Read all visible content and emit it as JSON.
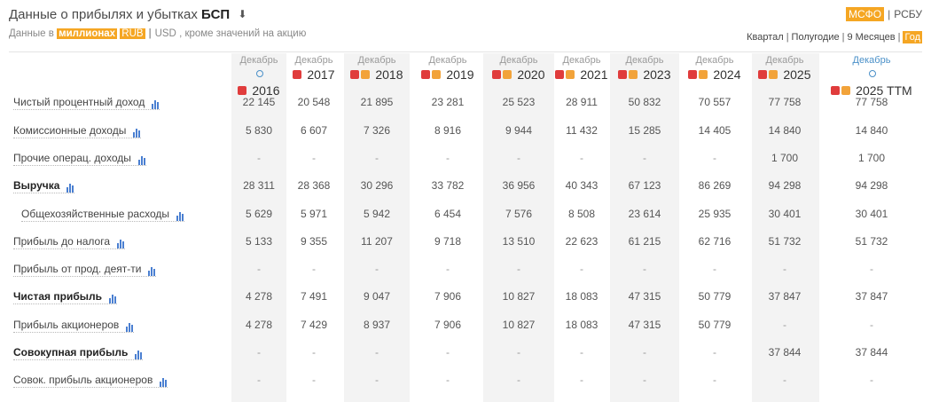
{
  "header": {
    "title": "Данные о прибылях и убытках",
    "company": "БСП",
    "subtitle_prefix": "Данные в",
    "unit_word": "миллионах",
    "currency_rub": "RUB",
    "currency_usd": "USD",
    "subtitle_suffix": ", кроме значений на акцию"
  },
  "standards": {
    "ifrs": "МСФО",
    "ras": "РСБУ",
    "active": "МСФО"
  },
  "periods": {
    "quarter": "Квартал",
    "half": "Полугодие",
    "nine": "9 Месяцев",
    "year": "Год",
    "active": "Год"
  },
  "accent_color": "#f5a623",
  "columns": [
    {
      "month": "Декабрь",
      "year": "2016"
    },
    {
      "month": "Декабрь",
      "year": "2017"
    },
    {
      "month": "Декабрь",
      "year": "2018"
    },
    {
      "month": "Декабрь",
      "year": "2019"
    },
    {
      "month": "Декабрь",
      "year": "2020"
    },
    {
      "month": "Декабрь",
      "year": "2021"
    },
    {
      "month": "Декабрь",
      "year": "2023"
    },
    {
      "month": "Декабрь",
      "year": "2024"
    },
    {
      "month": "Декабрь",
      "year": "2025"
    },
    {
      "month": "Декабрь",
      "year": "2025 TTM"
    }
  ],
  "rows": [
    {
      "label": "Чистый процентный доход",
      "values": [
        "22 145",
        "20 548",
        "21 895",
        "23 281",
        "25 523",
        "28 911",
        "50 832",
        "70 557",
        "77 758",
        "77 758"
      ]
    },
    {
      "label": "Комиссионные доходы",
      "values": [
        "5 830",
        "6 607",
        "7 326",
        "8 916",
        "9 944",
        "11 432",
        "15 285",
        "14 405",
        "14 840",
        "14 840"
      ]
    },
    {
      "label": "Прочие операц. доходы",
      "values": [
        "-",
        "-",
        "-",
        "-",
        "-",
        "-",
        "-",
        "-",
        "1 700",
        "1 700"
      ]
    },
    {
      "label": "Выручка",
      "values": [
        "28 311",
        "28 368",
        "30 296",
        "33 782",
        "36 956",
        "40 343",
        "67 123",
        "86 269",
        "94 298",
        "94 298"
      ]
    },
    {
      "label": "Общехозяйственные расходы",
      "values": [
        "5 629",
        "5 971",
        "5 942",
        "6 454",
        "7 576",
        "8 508",
        "23 614",
        "25 935",
        "30 401",
        "30 401"
      ]
    },
    {
      "label": "Прибыль до налога",
      "values": [
        "5 133",
        "9 355",
        "11 207",
        "9 718",
        "13 510",
        "22 623",
        "61 215",
        "62 716",
        "51 732",
        "51 732"
      ]
    },
    {
      "label": "Прибыль от прод. деят-ти",
      "values": [
        "-",
        "-",
        "-",
        "-",
        "-",
        "-",
        "-",
        "-",
        "-",
        "-"
      ]
    },
    {
      "label": "Чистая прибыль",
      "values": [
        "4 278",
        "7 491",
        "9 047",
        "7 906",
        "10 827",
        "18 083",
        "47 315",
        "50 779",
        "37 847",
        "37 847"
      ]
    },
    {
      "label": "Прибыль акционеров",
      "values": [
        "4 278",
        "7 429",
        "8 937",
        "7 906",
        "10 827",
        "18 083",
        "47 315",
        "50 779",
        "-",
        "-"
      ]
    },
    {
      "label": "Совокупная прибыль",
      "values": [
        "-",
        "-",
        "-",
        "-",
        "-",
        "-",
        "-",
        "-",
        "37 844",
        "37 844"
      ]
    },
    {
      "label": "Совок. прибыль акционеров",
      "values": [
        "-",
        "-",
        "-",
        "-",
        "-",
        "-",
        "-",
        "-",
        "-",
        "-"
      ]
    }
  ]
}
